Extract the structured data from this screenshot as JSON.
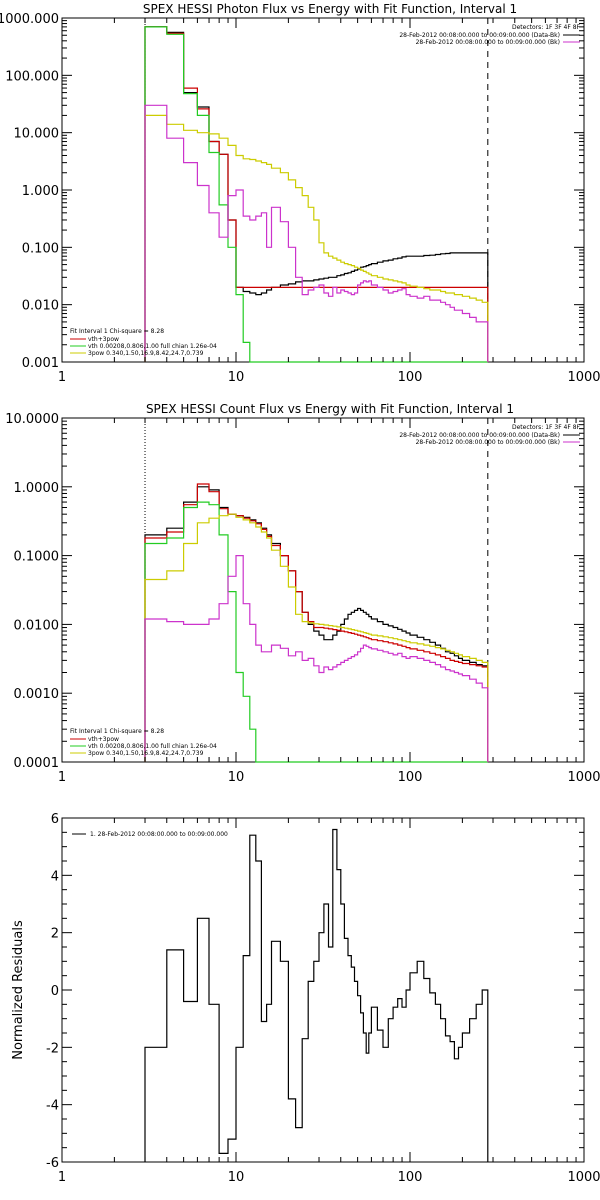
{
  "chart_data": [
    {
      "type": "line",
      "title": "SPEX HESSI Photon Flux vs Energy with Fit Function, Interval 1",
      "xscale": "log",
      "yscale": "log",
      "xlim": [
        1,
        1000
      ],
      "ylim": [
        0.001,
        1000
      ],
      "xticks": [
        "1",
        "10",
        "100",
        "1000"
      ],
      "yticks": [
        "0.001",
        "0.010",
        "0.100",
        "1.000",
        "10.000",
        "100.000",
        "1000.000"
      ],
      "vlines": [
        {
          "x": 3,
          "style": "dotted"
        },
        {
          "x": 280,
          "style": "dashed"
        }
      ],
      "legend_top": {
        "header": "Detectors: 1F 3F 4F 8F",
        "entries": [
          {
            "label": "28-Feb-2012 00:08:00.000 to 00:09:00.000 (Data-Bk)",
            "color": "#000000"
          },
          {
            "label": "28-Feb-2012 00:08:00.000 to 00:09:00.000 (Bk)",
            "color": "#cc33cc"
          }
        ]
      },
      "legend_bottom": {
        "header": "Fit Interval  1    Chi-square = 8.28",
        "entries": [
          {
            "label": "vth+3pow",
            "color": "#cc0000"
          },
          {
            "label": "vth 0.00208,0.806,1.00  full chian 1.26e-04",
            "color": "#22cc22"
          },
          {
            "label": "3pow 0.340,1.50,16.9,8.42,24.7,0.739",
            "color": "#cccc00"
          }
        ]
      },
      "edges": [
        3,
        4,
        5,
        6,
        7,
        8,
        9,
        10,
        11,
        12,
        13,
        14,
        15,
        16,
        18,
        20,
        22,
        24,
        26,
        28,
        30,
        32,
        34,
        36,
        38,
        40,
        42,
        44,
        46,
        48,
        50,
        52,
        54,
        56,
        58,
        60,
        65,
        70,
        75,
        80,
        85,
        90,
        95,
        100,
        110,
        120,
        130,
        140,
        150,
        160,
        170,
        180,
        190,
        200,
        220,
        240,
        260,
        280
      ],
      "series": [
        {
          "color": "#000000",
          "values": [
            700,
            560,
            50,
            28,
            7,
            4.2,
            0.3,
            0.02,
            0.017,
            0.016,
            0.015,
            0.016,
            0.018,
            0.02,
            0.022,
            0.023,
            0.025,
            0.026,
            0.026,
            0.027,
            0.028,
            0.029,
            0.03,
            0.03,
            0.032,
            0.033,
            0.035,
            0.036,
            0.038,
            0.04,
            0.042,
            0.045,
            0.046,
            0.048,
            0.05,
            0.052,
            0.055,
            0.058,
            0.06,
            0.063,
            0.065,
            0.068,
            0.07,
            0.07,
            0.07,
            0.072,
            0.073,
            0.075,
            0.077,
            0.078,
            0.08,
            0.08,
            0.08,
            0.08,
            0.08,
            0.08,
            0.08
          ]
        },
        {
          "color": "#cc0000",
          "values": [
            700,
            540,
            60,
            26,
            7,
            4.2,
            0.3,
            0.02,
            0.02,
            0.02,
            0.02,
            0.02,
            0.02,
            0.02,
            0.02,
            0.02,
            0.02,
            0.02,
            0.02,
            0.02,
            0.02,
            0.02,
            0.02,
            0.02,
            0.02,
            0.02,
            0.02,
            0.02,
            0.02,
            0.02,
            0.02,
            0.02,
            0.02,
            0.02,
            0.02,
            0.02,
            0.02,
            0.02,
            0.02,
            0.02,
            0.02,
            0.02,
            0.02,
            0.02,
            0.02,
            0.02,
            0.02,
            0.02,
            0.02,
            0.02,
            0.02,
            0.02,
            0.02,
            0.02,
            0.02,
            0.02,
            0.02
          ]
        },
        {
          "color": "#22cc22",
          "values": [
            700,
            520,
            48,
            20,
            4.5,
            0.55,
            0.1,
            0.015,
            0.0022,
            0.001,
            0.001,
            0.001,
            0.001,
            0.001,
            0.001,
            0.001,
            0.001,
            0.001,
            0.001,
            0.001,
            0.001,
            0.001,
            0.001,
            0.001,
            0.001,
            0.001,
            0.001,
            0.001,
            0.001,
            0.001,
            0.001,
            0.001,
            0.001,
            0.001,
            0.001,
            0.001,
            0.001,
            0.001,
            0.001,
            0.001,
            0.001,
            0.001,
            0.001,
            0.001,
            0.001,
            0.001,
            0.001,
            0.001,
            0.001,
            0.001,
            0.001,
            0.001,
            0.001,
            0.001,
            0.001,
            0.001,
            0.001
          ]
        },
        {
          "color": "#cccc00",
          "values": [
            20,
            14,
            11,
            10,
            9.5,
            8,
            6,
            4,
            3.5,
            3.4,
            3.2,
            3,
            2.8,
            2.4,
            2,
            1.5,
            1.1,
            0.8,
            0.5,
            0.3,
            0.12,
            0.08,
            0.07,
            0.065,
            0.06,
            0.055,
            0.052,
            0.05,
            0.048,
            0.045,
            0.043,
            0.04,
            0.038,
            0.036,
            0.034,
            0.032,
            0.03,
            0.028,
            0.027,
            0.026,
            0.025,
            0.024,
            0.022,
            0.021,
            0.02,
            0.019,
            0.018,
            0.018,
            0.017,
            0.016,
            0.016,
            0.015,
            0.015,
            0.014,
            0.013,
            0.012,
            0.011
          ]
        },
        {
          "color": "#cc33cc",
          "values": [
            30,
            8,
            3,
            1.2,
            0.4,
            0.15,
            0.8,
            1,
            0.35,
            0.3,
            0.35,
            0.4,
            0.1,
            0.5,
            0.28,
            0.1,
            0.03,
            0.015,
            0.018,
            0.02,
            0.022,
            0.016,
            0.014,
            0.02,
            0.016,
            0.018,
            0.017,
            0.016,
            0.015,
            0.016,
            0.022,
            0.024,
            0.026,
            0.025,
            0.026,
            0.022,
            0.02,
            0.018,
            0.016,
            0.017,
            0.018,
            0.019,
            0.015,
            0.014,
            0.013,
            0.014,
            0.012,
            0.012,
            0.011,
            0.01,
            0.009,
            0.008,
            0.008,
            0.007,
            0.006,
            0.005,
            0.005
          ]
        }
      ]
    },
    {
      "type": "line",
      "title": "SPEX HESSI Count Flux vs Energy with Fit Function, Interval 1",
      "xscale": "log",
      "yscale": "log",
      "xlim": [
        1,
        1000
      ],
      "ylim": [
        0.0001,
        10
      ],
      "xticks": [
        "1",
        "10",
        "100",
        "1000"
      ],
      "yticks": [
        "0.0001",
        "0.0010",
        "0.0100",
        "0.1000",
        "1.0000",
        "10.0000"
      ],
      "vlines": [
        {
          "x": 3,
          "style": "dotted"
        },
        {
          "x": 280,
          "style": "dashed"
        }
      ],
      "legend_top": {
        "header": "Detectors: 1F 3F 4F 8F",
        "entries": [
          {
            "label": "28-Feb-2012 00:08:00.000 to 00:09:00.000 (Data-Bk)",
            "color": "#000000"
          },
          {
            "label": "28-Feb-2012 00:08:00.000 to 00:09:00.000 (Bk)",
            "color": "#cc33cc"
          }
        ]
      },
      "legend_bottom": {
        "header": "Fit Interval  1    Chi-square = 8.28",
        "entries": [
          {
            "label": "vth+3pow",
            "color": "#cc0000"
          },
          {
            "label": "vth 0.00208,0.806,1.00  full chian 1.26e-04",
            "color": "#22cc22"
          },
          {
            "label": "3pow 0.340,1.50,16.9,8.42,24.7,0.739",
            "color": "#cccc00"
          }
        ]
      },
      "edges": [
        3,
        4,
        5,
        6,
        7,
        8,
        9,
        10,
        11,
        12,
        13,
        14,
        15,
        16,
        18,
        20,
        22,
        24,
        26,
        28,
        30,
        32,
        34,
        36,
        38,
        40,
        42,
        44,
        46,
        48,
        50,
        52,
        54,
        56,
        58,
        60,
        65,
        70,
        75,
        80,
        85,
        90,
        95,
        100,
        110,
        120,
        130,
        140,
        150,
        160,
        170,
        180,
        190,
        200,
        220,
        240,
        260,
        280
      ],
      "series": [
        {
          "color": "#000000",
          "values": [
            0.2,
            0.25,
            0.6,
            1.0,
            0.9,
            0.5,
            0.4,
            0.38,
            0.36,
            0.33,
            0.3,
            0.25,
            0.2,
            0.15,
            0.1,
            0.06,
            0.03,
            0.015,
            0.01,
            0.008,
            0.007,
            0.006,
            0.006,
            0.007,
            0.008,
            0.01,
            0.012,
            0.014,
            0.015,
            0.016,
            0.017,
            0.016,
            0.015,
            0.014,
            0.013,
            0.012,
            0.011,
            0.01,
            0.0095,
            0.009,
            0.0085,
            0.008,
            0.0075,
            0.007,
            0.0065,
            0.006,
            0.0055,
            0.005,
            0.0045,
            0.004,
            0.0038,
            0.0035,
            0.0032,
            0.003,
            0.0028,
            0.0026,
            0.0025
          ]
        },
        {
          "color": "#cc0000",
          "values": [
            0.18,
            0.22,
            0.55,
            1.1,
            0.85,
            0.48,
            0.4,
            0.38,
            0.35,
            0.32,
            0.29,
            0.24,
            0.19,
            0.14,
            0.1,
            0.06,
            0.03,
            0.015,
            0.011,
            0.009,
            0.009,
            0.0088,
            0.0086,
            0.0084,
            0.0082,
            0.008,
            0.0078,
            0.0076,
            0.0074,
            0.0072,
            0.007,
            0.0068,
            0.0066,
            0.0064,
            0.0062,
            0.006,
            0.0058,
            0.0056,
            0.0054,
            0.0052,
            0.005,
            0.0048,
            0.0046,
            0.0044,
            0.0042,
            0.004,
            0.0038,
            0.0036,
            0.0034,
            0.0032,
            0.003,
            0.0029,
            0.0028,
            0.0027,
            0.0026,
            0.0025,
            0.0024
          ]
        },
        {
          "color": "#22cc22",
          "values": [
            0.15,
            0.18,
            0.5,
            0.6,
            0.55,
            0.2,
            0.03,
            0.002,
            0.0009,
            0.0003,
            0.0001,
            0.0001,
            0.0001,
            0.0001,
            0.0001,
            0.0001,
            0.0001,
            0.0001,
            0.0001,
            0.0001,
            0.0001,
            0.0001,
            0.0001,
            0.0001,
            0.0001,
            0.0001,
            0.0001,
            0.0001,
            0.0001,
            0.0001,
            0.0001,
            0.0001,
            0.0001,
            0.0001,
            0.0001,
            0.0001,
            0.0001,
            0.0001,
            0.0001,
            0.0001,
            0.0001,
            0.0001,
            0.0001,
            0.0001,
            0.0001,
            0.0001,
            0.0001,
            0.0001,
            0.0001,
            0.0001,
            0.0001,
            0.0001,
            0.0001,
            0.0001,
            0.0001,
            0.0001,
            0.0001
          ]
        },
        {
          "color": "#cccc00",
          "values": [
            0.045,
            0.06,
            0.15,
            0.3,
            0.35,
            0.38,
            0.4,
            0.36,
            0.33,
            0.3,
            0.26,
            0.22,
            0.18,
            0.12,
            0.07,
            0.035,
            0.014,
            0.011,
            0.0105,
            0.0102,
            0.01,
            0.0098,
            0.0096,
            0.0094,
            0.0092,
            0.009,
            0.0088,
            0.0086,
            0.0084,
            0.0082,
            0.008,
            0.0078,
            0.0076,
            0.0074,
            0.0072,
            0.007,
            0.0068,
            0.0066,
            0.0064,
            0.0062,
            0.006,
            0.0058,
            0.0056,
            0.0054,
            0.0052,
            0.005,
            0.0048,
            0.0046,
            0.0044,
            0.0042,
            0.004,
            0.0038,
            0.0036,
            0.0034,
            0.0032,
            0.003,
            0.0028
          ]
        },
        {
          "color": "#cc33cc",
          "values": [
            0.012,
            0.011,
            0.01,
            0.01,
            0.012,
            0.02,
            0.05,
            0.1,
            0.02,
            0.01,
            0.005,
            0.004,
            0.004,
            0.005,
            0.0045,
            0.0035,
            0.004,
            0.003,
            0.0032,
            0.0025,
            0.002,
            0.0024,
            0.0022,
            0.0024,
            0.0026,
            0.0028,
            0.003,
            0.0032,
            0.0034,
            0.0036,
            0.004,
            0.0045,
            0.005,
            0.0048,
            0.0046,
            0.0044,
            0.0042,
            0.004,
            0.0038,
            0.0036,
            0.0038,
            0.0034,
            0.0032,
            0.0034,
            0.0032,
            0.003,
            0.0028,
            0.0026,
            0.0024,
            0.0022,
            0.0021,
            0.002,
            0.0019,
            0.0018,
            0.0016,
            0.0014,
            0.0012
          ]
        }
      ]
    },
    {
      "type": "line",
      "title": "",
      "ylabel": "Normalized Residuals",
      "xscale": "log",
      "xlim": [
        1,
        1000
      ],
      "ylim": [
        -6,
        6
      ],
      "xticks": [
        "1",
        "10",
        "100",
        "1000"
      ],
      "yticks": [
        "-6",
        "-4",
        "-2",
        "0",
        "2",
        "4",
        "6"
      ],
      "legend": [
        {
          "label": "1. 28-Feb-2012 00:08:00.000 to 00:09:00.000",
          "color": "#000000"
        }
      ],
      "edges": [
        3,
        4,
        5,
        6,
        7,
        8,
        9,
        10,
        11,
        12,
        13,
        14,
        15,
        16,
        18,
        20,
        22,
        24,
        26,
        28,
        30,
        32,
        34,
        36,
        38,
        40,
        42,
        44,
        46,
        48,
        50,
        52,
        54,
        56,
        58,
        60,
        65,
        70,
        75,
        80,
        85,
        90,
        95,
        100,
        110,
        120,
        130,
        140,
        150,
        160,
        170,
        180,
        190,
        200,
        220,
        240,
        260,
        280
      ],
      "series": [
        {
          "color": "#000000",
          "values": [
            -2,
            1.4,
            -0.4,
            2.5,
            -0.5,
            -5.7,
            -5.2,
            -2,
            1.2,
            5.4,
            4.5,
            -1.1,
            -0.5,
            1.7,
            1.0,
            -3.8,
            -4.8,
            -1.7,
            0.3,
            1.0,
            2.0,
            3.0,
            1.5,
            5.6,
            4.2,
            3.0,
            1.8,
            1.2,
            0.8,
            0.3,
            -0.2,
            -0.8,
            -1.5,
            -2.2,
            -1.5,
            -0.6,
            -1.4,
            -2.0,
            -1.0,
            -0.6,
            -0.3,
            -0.6,
            0.0,
            0.6,
            1.0,
            0.4,
            -0.1,
            -0.5,
            -1.0,
            -1.6,
            -1.8,
            -2.4,
            -2.0,
            -1.5,
            -1.0,
            -0.5,
            0.0
          ]
        }
      ]
    }
  ]
}
